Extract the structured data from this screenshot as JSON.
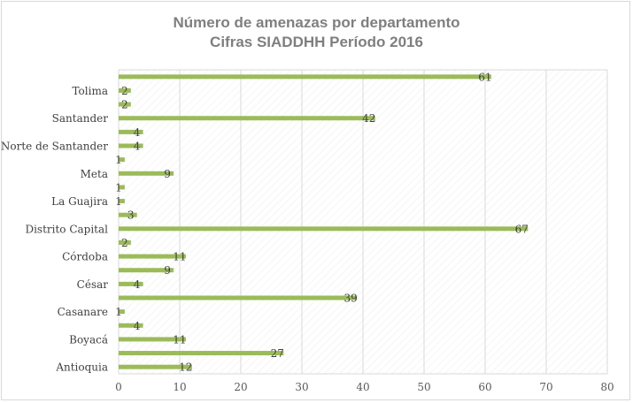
{
  "chart_data": {
    "type": "bar",
    "orientation": "horizontal",
    "title": "Número de amenazas por departamento",
    "subtitle": "Cifras SIADDHH Período 2016",
    "xlim": [
      0,
      80
    ],
    "x_ticks": [
      0,
      10,
      20,
      30,
      40,
      50,
      60,
      70,
      80
    ],
    "grid": true,
    "bar_color": "#9bbb59",
    "grid_color": "#d9d9d9",
    "categories": [
      "Antioquia",
      "",
      "Boyacá",
      "",
      "Casanare",
      "",
      "César",
      "",
      "Córdoba",
      "",
      "Distrito Capital",
      "",
      "La Guajira",
      "",
      "Meta",
      "",
      "Norte de Santander",
      "",
      "Santander",
      "",
      "Tolima",
      ""
    ],
    "values": [
      12,
      27,
      11,
      4,
      1,
      39,
      4,
      9,
      11,
      2,
      67,
      3,
      1,
      1,
      9,
      1,
      4,
      4,
      42,
      2,
      2,
      61
    ]
  }
}
